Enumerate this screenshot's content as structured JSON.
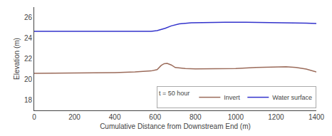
{
  "chart_data": {
    "type": "line",
    "xlabel": "Cumulative Distance from Downstream End (m)",
    "ylabel": "Elevation (m)",
    "legend_title": "t = 50 hour",
    "legend": "lower right",
    "grid": false,
    "xlim": [
      0,
      1400
    ],
    "ylim": [
      17,
      27
    ],
    "xticks": [
      0,
      200,
      400,
      600,
      800,
      1000,
      1200,
      1400
    ],
    "yticks": [
      18,
      20,
      22,
      24,
      26
    ],
    "series": [
      {
        "name": "Invert",
        "color": "#9B6B5A",
        "x": [
          0,
          50,
          100,
          200,
          300,
          400,
          500,
          580,
          610,
          630,
          645,
          660,
          680,
          700,
          750,
          800,
          900,
          1000,
          1100,
          1200,
          1250,
          1300,
          1350,
          1400
        ],
        "values": [
          20.58,
          20.59,
          20.6,
          20.61,
          20.63,
          20.66,
          20.72,
          20.82,
          20.95,
          21.35,
          21.52,
          21.55,
          21.4,
          21.15,
          21.05,
          21.02,
          21.03,
          21.05,
          21.15,
          21.22,
          21.22,
          21.15,
          21.0,
          20.72
        ]
      },
      {
        "name": "Water surface",
        "color": "#3333CC",
        "x": [
          0,
          50,
          100,
          200,
          300,
          400,
          500,
          580,
          610,
          630,
          650,
          680,
          720,
          780,
          850,
          950,
          1050,
          1150,
          1250,
          1350,
          1400
        ],
        "values": [
          24.65,
          24.65,
          24.65,
          24.65,
          24.65,
          24.65,
          24.65,
          24.66,
          24.72,
          24.82,
          24.95,
          25.18,
          25.38,
          25.48,
          25.52,
          25.53,
          25.53,
          25.52,
          25.5,
          25.45,
          25.42
        ]
      }
    ]
  }
}
